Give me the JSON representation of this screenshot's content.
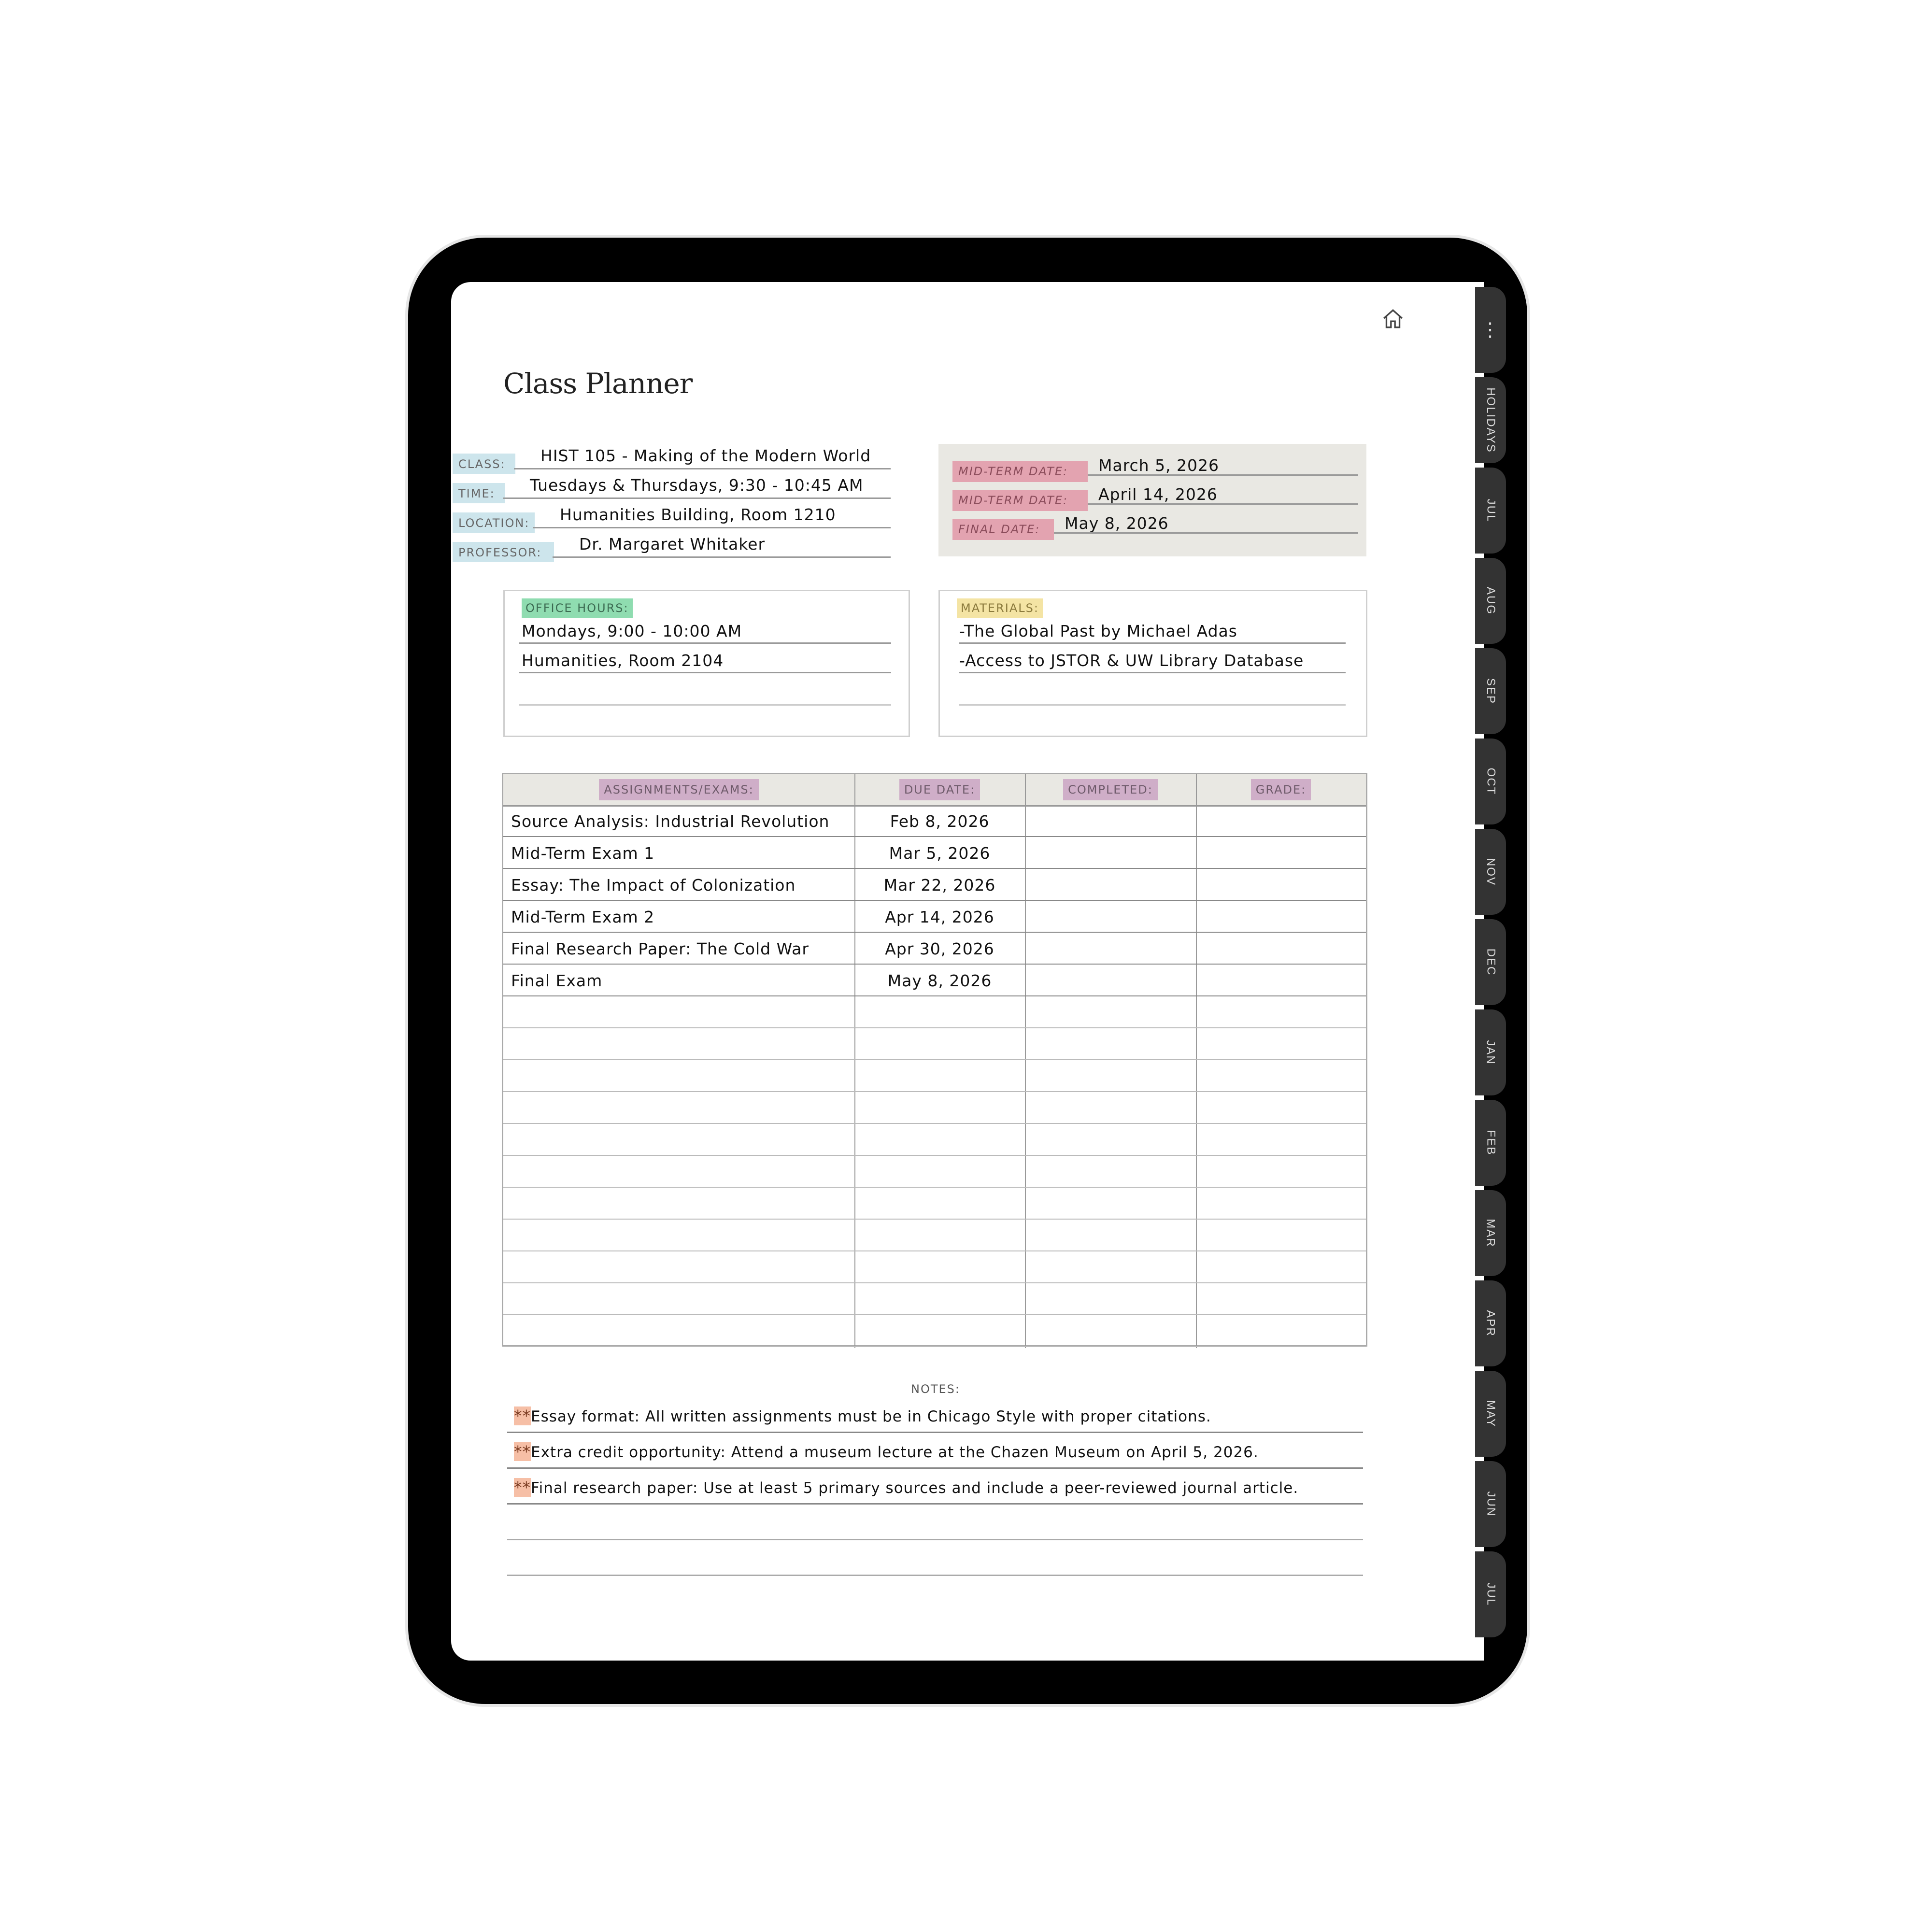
{
  "page": {
    "title": "Class Planner"
  },
  "info": [
    {
      "label": "CLASS:",
      "value": "HIST 105 - Making of the Modern World"
    },
    {
      "label": "TIME:",
      "value": "Tuesdays & Thursdays, 9:30 - 10:45 AM"
    },
    {
      "label": "LOCATION:",
      "value": "Humanities Building, Room 1210"
    },
    {
      "label": "PROFESSOR:",
      "value": "Dr. Margaret Whitaker"
    }
  ],
  "exam_dates": [
    {
      "label": "MID-TERM DATE:",
      "value": "March 5, 2026"
    },
    {
      "label": "MID-TERM DATE:",
      "value": "April 14, 2026"
    },
    {
      "label": "FINAL DATE:",
      "value": "May 8, 2026"
    }
  ],
  "office_hours": {
    "label": "OFFICE HOURS:",
    "lines": [
      "Mondays, 9:00 - 10:00 AM",
      "Humanities, Room 2104"
    ]
  },
  "materials": {
    "label": "MATERIALS:",
    "lines": [
      "-The Global Past by Michael Adas",
      "-Access to JSTOR & UW Library Database"
    ]
  },
  "table": {
    "headers": [
      "ASSIGNMENTS/EXAMS:",
      "DUE DATE:",
      "COMPLETED:",
      "GRADE:"
    ],
    "rows": [
      [
        "Source Analysis: Industrial Revolution",
        "Feb 8, 2026",
        "",
        ""
      ],
      [
        "Mid-Term Exam 1",
        "Mar 5, 2026",
        "",
        ""
      ],
      [
        "Essay: The Impact of Colonization",
        "Mar 22, 2026",
        "",
        ""
      ],
      [
        "Mid-Term Exam 2",
        "Apr 14, 2026",
        "",
        ""
      ],
      [
        "Final Research Paper: The Cold War",
        "Apr 30, 2026",
        "",
        ""
      ],
      [
        "Final Exam",
        "May 8, 2026",
        "",
        ""
      ]
    ]
  },
  "notes": {
    "label": "NOTES:",
    "marker": "**",
    "items": [
      "Essay format: All written assignments must be in Chicago Style with proper citations.",
      "Extra credit opportunity: Attend a museum lecture at the Chazen Museum on April 5, 2026.",
      "Final research paper: Use at least 5 primary sources and include a peer-reviewed journal article."
    ]
  },
  "tabs": [
    "⋮",
    "HOLIDAYS",
    "JUL",
    "AUG",
    "SEP",
    "OCT",
    "NOV",
    "DEC",
    "JAN",
    "FEB",
    "MAR",
    "APR",
    "MAY",
    "JUN",
    "JUL"
  ],
  "icons": {
    "home": "home-icon",
    "more": "more-vertical-icon"
  },
  "colors": {
    "info_label": "#cde5ec",
    "date_label": "#e3a3b0",
    "office_hours": "#8fdcb0",
    "materials": "#f4e4a4",
    "table_header": "#cfaec8",
    "note_marker": "#f6bfa6"
  }
}
